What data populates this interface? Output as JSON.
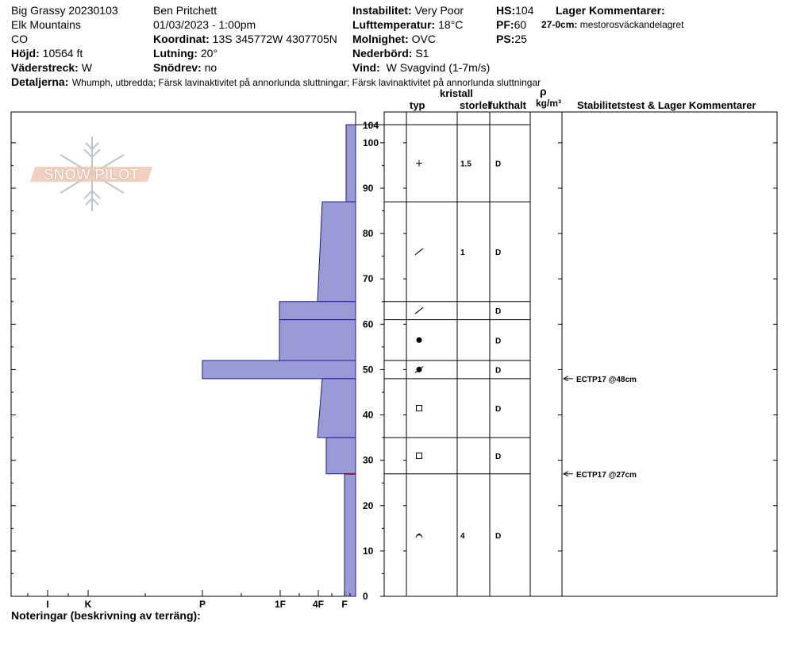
{
  "header": {
    "site": "Big Grassy 20230103",
    "range": "Elk Mountains",
    "state": "CO",
    "elevation_label": "Höjd:",
    "elevation_value": "10564 ft",
    "aspect_label": "Väderstreck:",
    "aspect_value": "W",
    "observer": "Ben Pritchett",
    "datetime": "01/03/2023 - 1:00pm",
    "coord_label": "Koordinat:",
    "coord_value": "13S 345772W 4307705N",
    "slope_label": "Lutning:",
    "slope_value": "20°",
    "drift_label": "Snödrev:",
    "drift_value": "no",
    "instability_label": "Instabilitet:",
    "instability_value": "Very Poor",
    "airtemp_label": "Lufttemperatur:",
    "airtemp_value": "18°C",
    "sky_label": "Molnighet:",
    "sky_value": "OVC",
    "precip_label": "Nederbörd:",
    "precip_value": "S1",
    "wind_label": "Vind:",
    "wind_value": "W Svagvind (1-7m/s)",
    "hs_label": "HS:",
    "hs_value": "104",
    "pf_label": "PF:",
    "pf_value": "60",
    "ps_label": "PS:",
    "ps_value": "25",
    "layer_comments_label": "Lager Kommentarer:",
    "layer_comment_depth": "27-0cm:",
    "layer_comment_text": "mestorosväckandelagret",
    "details_label": "Detaljerna:",
    "details_value": "Whumph, utbredda; Färsk lavinaktivitet på annorlunda sluttningar; Färsk lavinaktivitet på annorlunda sluttningar"
  },
  "table_headers": {
    "crystal": "kristall",
    "type": "typ",
    "size": "storlek",
    "moisture": "fukthalt",
    "rho": "ρ",
    "density_unit": "kg/m³",
    "stability": "Stabilitetstest & Lager Kommentarer"
  },
  "notes_label": "Noteringar (beskrivning av terräng):",
  "colors": {
    "hardness_fill": "#9a9ad6",
    "hardness_stroke": "#1a1a9a",
    "marker": "#8b1a1a"
  },
  "chart_data": {
    "type": "snow-profile",
    "y_axis": {
      "range": [
        0,
        104
      ],
      "ticks": [
        0,
        10,
        20,
        30,
        40,
        50,
        60,
        70,
        80,
        90,
        100
      ],
      "top_label": "104"
    },
    "hardness_axis": {
      "labels": [
        "I",
        "K",
        "P",
        "1F",
        "4F",
        "F"
      ],
      "scale": [
        "I",
        "K",
        "P",
        "1F",
        "4F",
        "F"
      ]
    },
    "hardness_profile": [
      {
        "top": 104,
        "bottom": 87,
        "hardness_top": 0.3,
        "hardness_bottom": 0.3
      },
      {
        "top": 87,
        "bottom": 65,
        "hardness_top": 0.8,
        "hardness_bottom": 1
      },
      {
        "top": 65,
        "bottom": 61,
        "hardness_top": 2,
        "hardness_bottom": 2
      },
      {
        "top": 61,
        "bottom": 52,
        "hardness_top": 2,
        "hardness_bottom": 2
      },
      {
        "top": 52,
        "bottom": 48,
        "hardness_top": 4,
        "hardness_bottom": 4
      },
      {
        "top": 48,
        "bottom": 35,
        "hardness_top": 0.8,
        "hardness_bottom": 1
      },
      {
        "top": 35,
        "bottom": 27,
        "hardness_top": 0.75,
        "hardness_bottom": 0.75
      },
      {
        "top": 27,
        "bottom": 0,
        "hardness_top": 0.25,
        "hardness_bottom": 0.25
      }
    ],
    "layers": [
      {
        "top": 104,
        "bottom": 87,
        "grain": "plus",
        "size": "1.5",
        "moisture": "D"
      },
      {
        "top": 87,
        "bottom": 65,
        "grain": "slash",
        "size": "1",
        "moisture": "D"
      },
      {
        "top": 65,
        "bottom": 61,
        "grain": "slash",
        "size": "",
        "moisture": "D"
      },
      {
        "top": 61,
        "bottom": 52,
        "grain": "dot",
        "size": "",
        "moisture": "D"
      },
      {
        "top": 52,
        "bottom": 48,
        "grain": "dot-slash",
        "size": "",
        "moisture": "D"
      },
      {
        "top": 48,
        "bottom": 35,
        "grain": "square",
        "size": "",
        "moisture": "D"
      },
      {
        "top": 35,
        "bottom": 27,
        "grain": "square",
        "size": "",
        "moisture": "D"
      },
      {
        "top": 27,
        "bottom": 0,
        "grain": "cup",
        "size": "4",
        "moisture": "D"
      }
    ],
    "tests": [
      {
        "depth": 48,
        "label": "ECTP17 @48cm"
      },
      {
        "depth": 27,
        "label": "ECTP17 @27cm"
      }
    ],
    "marker_depth": 27
  }
}
